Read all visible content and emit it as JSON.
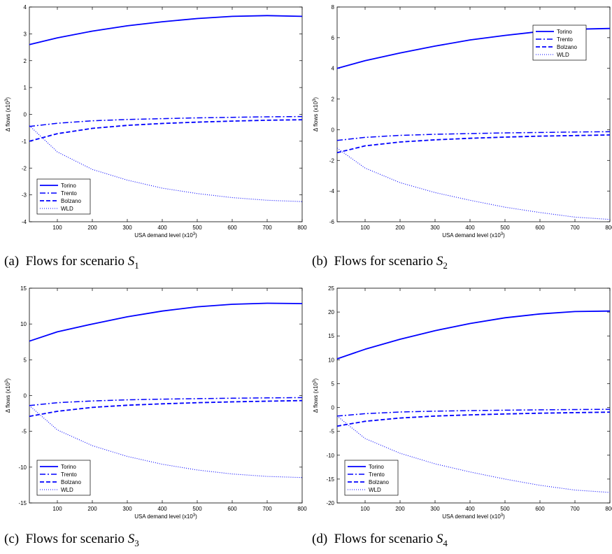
{
  "chart_data": [
    {
      "type": "line",
      "caption": {
        "prefix": "(a)",
        "text": "Flows for scenario",
        "symbol": "S",
        "subscript": "1"
      },
      "xlabel": "USA demand level (x10",
      "xlabel_sup": "3",
      "xlabel_tail": ")",
      "ylabel": "Δ flows (x10",
      "ylabel_sup": "3",
      "ylabel_tail": ")",
      "xlim": [
        20,
        800
      ],
      "ylim": [
        -4,
        4
      ],
      "xticks": [
        100,
        200,
        300,
        400,
        500,
        600,
        700,
        800
      ],
      "yticks": [
        -4,
        -3,
        -2,
        -1,
        0,
        1,
        2,
        3,
        4
      ],
      "legend_position": "bottom-left",
      "series": [
        {
          "name": "Torino",
          "style": "solid",
          "x": [
            20,
            100,
            200,
            300,
            400,
            500,
            600,
            700,
            800
          ],
          "y": [
            2.6,
            2.85,
            3.1,
            3.3,
            3.45,
            3.57,
            3.65,
            3.68,
            3.65
          ]
        },
        {
          "name": "Trento",
          "style": "dashdot",
          "x": [
            20,
            100,
            200,
            300,
            400,
            500,
            600,
            700,
            800
          ],
          "y": [
            -0.45,
            -0.33,
            -0.24,
            -0.19,
            -0.16,
            -0.13,
            -0.11,
            -0.09,
            -0.08
          ]
        },
        {
          "name": "Bolzano",
          "style": "dashed",
          "x": [
            20,
            100,
            200,
            300,
            400,
            500,
            600,
            700,
            800
          ],
          "y": [
            -1.0,
            -0.72,
            -0.52,
            -0.41,
            -0.34,
            -0.29,
            -0.25,
            -0.22,
            -0.2
          ]
        },
        {
          "name": "WLD",
          "style": "dotted",
          "x": [
            20,
            100,
            200,
            300,
            400,
            500,
            600,
            700,
            800
          ],
          "y": [
            -0.42,
            -1.4,
            -2.05,
            -2.45,
            -2.75,
            -2.95,
            -3.1,
            -3.2,
            -3.25
          ]
        }
      ]
    },
    {
      "type": "line",
      "caption": {
        "prefix": "(b)",
        "text": "Flows for scenario",
        "symbol": "S",
        "subscript": "2"
      },
      "xlabel": "USA demand level (x10",
      "xlabel_sup": "3",
      "xlabel_tail": ")",
      "ylabel": "Δ flows (x10",
      "ylabel_sup": "3",
      "ylabel_tail": ")",
      "xlim": [
        20,
        800
      ],
      "ylim": [
        -6,
        8
      ],
      "xticks": [
        100,
        200,
        300,
        400,
        500,
        600,
        700,
        800
      ],
      "yticks": [
        -6,
        -4,
        -2,
        0,
        2,
        4,
        6,
        8
      ],
      "legend_position": "top-right",
      "series": [
        {
          "name": "Torino",
          "style": "solid",
          "x": [
            20,
            100,
            200,
            300,
            400,
            500,
            600,
            700,
            800
          ],
          "y": [
            4.0,
            4.5,
            5.0,
            5.45,
            5.85,
            6.15,
            6.4,
            6.55,
            6.6
          ]
        },
        {
          "name": "Trento",
          "style": "dashdot",
          "x": [
            20,
            100,
            200,
            300,
            400,
            500,
            600,
            700,
            800
          ],
          "y": [
            -0.7,
            -0.5,
            -0.37,
            -0.3,
            -0.25,
            -0.21,
            -0.18,
            -0.15,
            -0.13
          ]
        },
        {
          "name": "Bolzano",
          "style": "dashed",
          "x": [
            20,
            100,
            200,
            300,
            400,
            500,
            600,
            700,
            800
          ],
          "y": [
            -1.5,
            -1.05,
            -0.8,
            -0.66,
            -0.56,
            -0.48,
            -0.42,
            -0.38,
            -0.34
          ]
        },
        {
          "name": "WLD",
          "style": "dotted",
          "x": [
            20,
            100,
            200,
            300,
            400,
            500,
            600,
            700,
            800
          ],
          "y": [
            -1.2,
            -2.5,
            -3.45,
            -4.1,
            -4.6,
            -5.05,
            -5.4,
            -5.7,
            -5.85
          ]
        }
      ]
    },
    {
      "type": "line",
      "caption": {
        "prefix": "(c)",
        "text": "Flows for scenario",
        "symbol": "S",
        "subscript": "3"
      },
      "xlabel": "USA demand level (x10",
      "xlabel_sup": "3",
      "xlabel_tail": ")",
      "ylabel": "Δ flows (x10",
      "ylabel_sup": "3",
      "ylabel_tail": ")",
      "xlim": [
        20,
        800
      ],
      "ylim": [
        -15,
        15
      ],
      "xticks": [
        100,
        200,
        300,
        400,
        500,
        600,
        700,
        800
      ],
      "yticks": [
        -15,
        -10,
        -5,
        0,
        5,
        10,
        15
      ],
      "legend_position": "bottom-left",
      "series": [
        {
          "name": "Torino",
          "style": "solid",
          "x": [
            20,
            100,
            200,
            300,
            400,
            500,
            600,
            700,
            800
          ],
          "y": [
            7.6,
            8.9,
            10.0,
            11.0,
            11.8,
            12.4,
            12.75,
            12.9,
            12.85
          ]
        },
        {
          "name": "Trento",
          "style": "dashdot",
          "x": [
            20,
            100,
            200,
            300,
            400,
            500,
            600,
            700,
            800
          ],
          "y": [
            -1.4,
            -1.0,
            -0.75,
            -0.6,
            -0.5,
            -0.43,
            -0.37,
            -0.32,
            -0.28
          ]
        },
        {
          "name": "Bolzano",
          "style": "dashed",
          "x": [
            20,
            100,
            200,
            300,
            400,
            500,
            600,
            700,
            800
          ],
          "y": [
            -2.9,
            -2.2,
            -1.65,
            -1.35,
            -1.15,
            -1.0,
            -0.88,
            -0.78,
            -0.7
          ]
        },
        {
          "name": "WLD",
          "style": "dotted",
          "x": [
            20,
            100,
            200,
            300,
            400,
            500,
            600,
            700,
            800
          ],
          "y": [
            -1.4,
            -4.8,
            -7.0,
            -8.5,
            -9.6,
            -10.4,
            -10.95,
            -11.3,
            -11.45
          ]
        }
      ]
    },
    {
      "type": "line",
      "caption": {
        "prefix": "(d)",
        "text": "Flows for scenario",
        "symbol": "S",
        "subscript": "4"
      },
      "xlabel": "USA demand level (x10",
      "xlabel_sup": "3",
      "xlabel_tail": ")",
      "ylabel": "Δ flows (x10",
      "ylabel_sup": "3",
      "ylabel_tail": ")",
      "xlim": [
        20,
        800
      ],
      "ylim": [
        -20,
        25
      ],
      "xticks": [
        100,
        200,
        300,
        400,
        500,
        600,
        700,
        800
      ],
      "yticks": [
        -20,
        -15,
        -10,
        -5,
        0,
        5,
        10,
        15,
        20,
        25
      ],
      "legend_position": "bottom-left",
      "series": [
        {
          "name": "Torino",
          "style": "solid",
          "x": [
            20,
            100,
            200,
            300,
            400,
            500,
            600,
            700,
            800
          ],
          "y": [
            10.2,
            12.2,
            14.3,
            16.1,
            17.6,
            18.8,
            19.6,
            20.1,
            20.2
          ]
        },
        {
          "name": "Trento",
          "style": "dashdot",
          "x": [
            20,
            100,
            200,
            300,
            400,
            500,
            600,
            700,
            800
          ],
          "y": [
            -1.8,
            -1.3,
            -0.95,
            -0.77,
            -0.65,
            -0.56,
            -0.49,
            -0.43,
            -0.38
          ]
        },
        {
          "name": "Bolzano",
          "style": "dashed",
          "x": [
            20,
            100,
            200,
            300,
            400,
            500,
            600,
            700,
            800
          ],
          "y": [
            -3.9,
            -2.9,
            -2.2,
            -1.8,
            -1.55,
            -1.35,
            -1.2,
            -1.08,
            -0.98
          ]
        },
        {
          "name": "WLD",
          "style": "dotted",
          "x": [
            20,
            100,
            200,
            300,
            400,
            500,
            600,
            700,
            800
          ],
          "y": [
            -1.8,
            -6.5,
            -9.6,
            -11.8,
            -13.5,
            -15.0,
            -16.3,
            -17.3,
            -17.8
          ]
        }
      ]
    }
  ],
  "colors": {
    "line": "#0000ff",
    "axis": "#000000"
  }
}
